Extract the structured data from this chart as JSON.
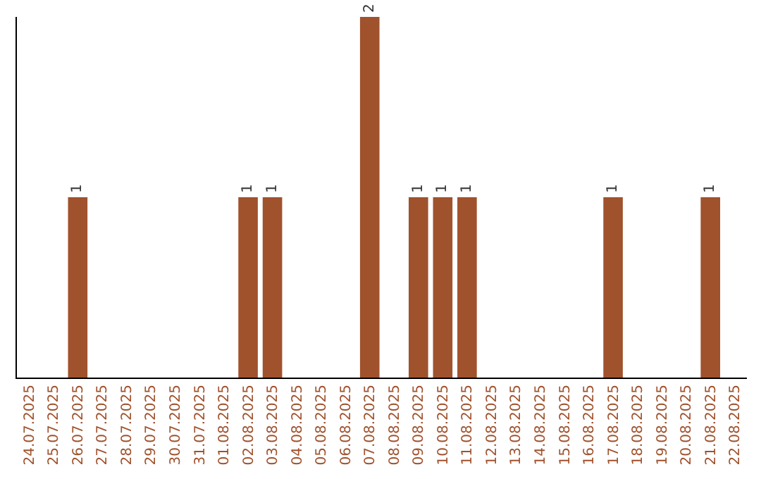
{
  "chart_data": {
    "type": "bar",
    "categories": [
      "24.07.2025",
      "25.07.2025",
      "26.07.2025",
      "27.07.2025",
      "28.07.2025",
      "29.07.2025",
      "30.07.2025",
      "31.07.2025",
      "01.08.2025",
      "02.08.2025",
      "03.08.2025",
      "04.08.2025",
      "05.08.2025",
      "06.08.2025",
      "07.08.2025",
      "08.08.2025",
      "09.08.2025",
      "10.08.2025",
      "11.08.2025",
      "12.08.2025",
      "13.08.2025",
      "14.08.2025",
      "15.08.2025",
      "16.08.2025",
      "17.08.2025",
      "18.08.2025",
      "19.08.2025",
      "20.08.2025",
      "21.08.2025",
      "22.08.2025"
    ],
    "values": [
      0,
      0,
      1,
      0,
      0,
      0,
      0,
      0,
      0,
      1,
      1,
      0,
      0,
      0,
      2,
      0,
      1,
      1,
      1,
      0,
      0,
      0,
      0,
      0,
      1,
      0,
      0,
      0,
      1,
      0
    ],
    "value_labels": [
      null,
      null,
      "1",
      null,
      null,
      null,
      null,
      null,
      null,
      "1",
      "1",
      null,
      null,
      null,
      "2",
      null,
      "1",
      "1",
      "1",
      null,
      null,
      null,
      null,
      null,
      "1",
      null,
      null,
      null,
      "1",
      null
    ],
    "color": "#a0522d",
    "ylim": [
      0,
      2
    ],
    "tick_labels": "x",
    "legend": false
  }
}
